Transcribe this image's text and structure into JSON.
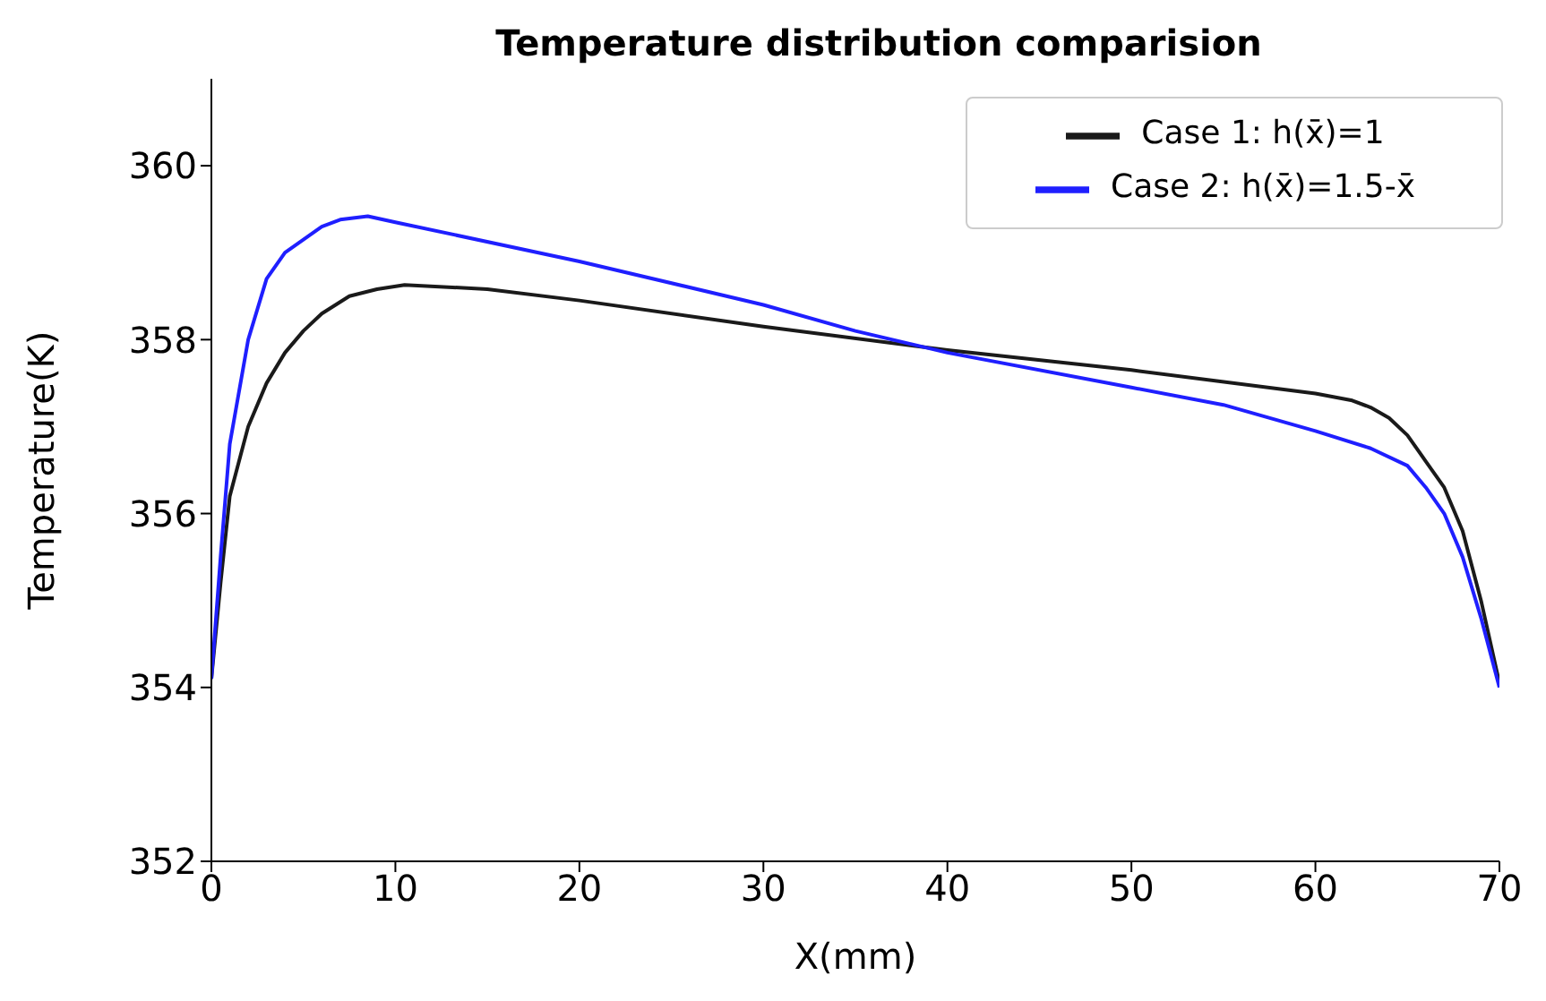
{
  "chart_data": {
    "type": "line",
    "title": "Temperature distribution comparision",
    "xlabel": "X(mm)",
    "ylabel": "Temperature(K)",
    "xlim": [
      0,
      70
    ],
    "xticks": [
      0,
      10,
      20,
      30,
      40,
      50,
      60,
      70
    ],
    "ylim": [
      352,
      361
    ],
    "yticks": [
      352,
      354,
      356,
      358,
      360
    ],
    "legend": "top right",
    "grid": false,
    "series": [
      {
        "name": "Case 1: h(x̄)=1",
        "color": "#1a1a1a",
        "x": [
          0,
          0.5,
          1,
          2,
          3,
          4,
          5,
          6,
          7.5,
          9,
          10.5,
          15,
          20,
          30,
          40,
          50,
          60,
          62,
          63,
          64,
          65,
          66,
          67,
          68,
          69,
          70
        ],
        "values": [
          354.1,
          355.2,
          356.2,
          357,
          357.5,
          357.85,
          358.1,
          358.3,
          358.5,
          358.58,
          358.63,
          358.58,
          358.45,
          358.15,
          357.88,
          357.65,
          357.38,
          357.3,
          357.22,
          357.1,
          356.9,
          356.6,
          356.3,
          355.8,
          355,
          354.05
        ]
      },
      {
        "name": "Case 2: h(x̄)=1.5-x̄",
        "color": "#1f1fff",
        "x": [
          0,
          0.5,
          1,
          2,
          3,
          4,
          5,
          6,
          7,
          8.5,
          10,
          20,
          30,
          35,
          40,
          50,
          55,
          60,
          63,
          65,
          66,
          67,
          68,
          69,
          70
        ],
        "values": [
          354.1,
          355.5,
          356.8,
          358,
          358.7,
          359,
          359.15,
          359.3,
          359.38,
          359.42,
          359.35,
          358.9,
          358.4,
          358.1,
          357.85,
          357.45,
          357.25,
          356.95,
          356.75,
          356.55,
          356.3,
          356,
          355.5,
          354.8,
          354
        ]
      }
    ]
  }
}
